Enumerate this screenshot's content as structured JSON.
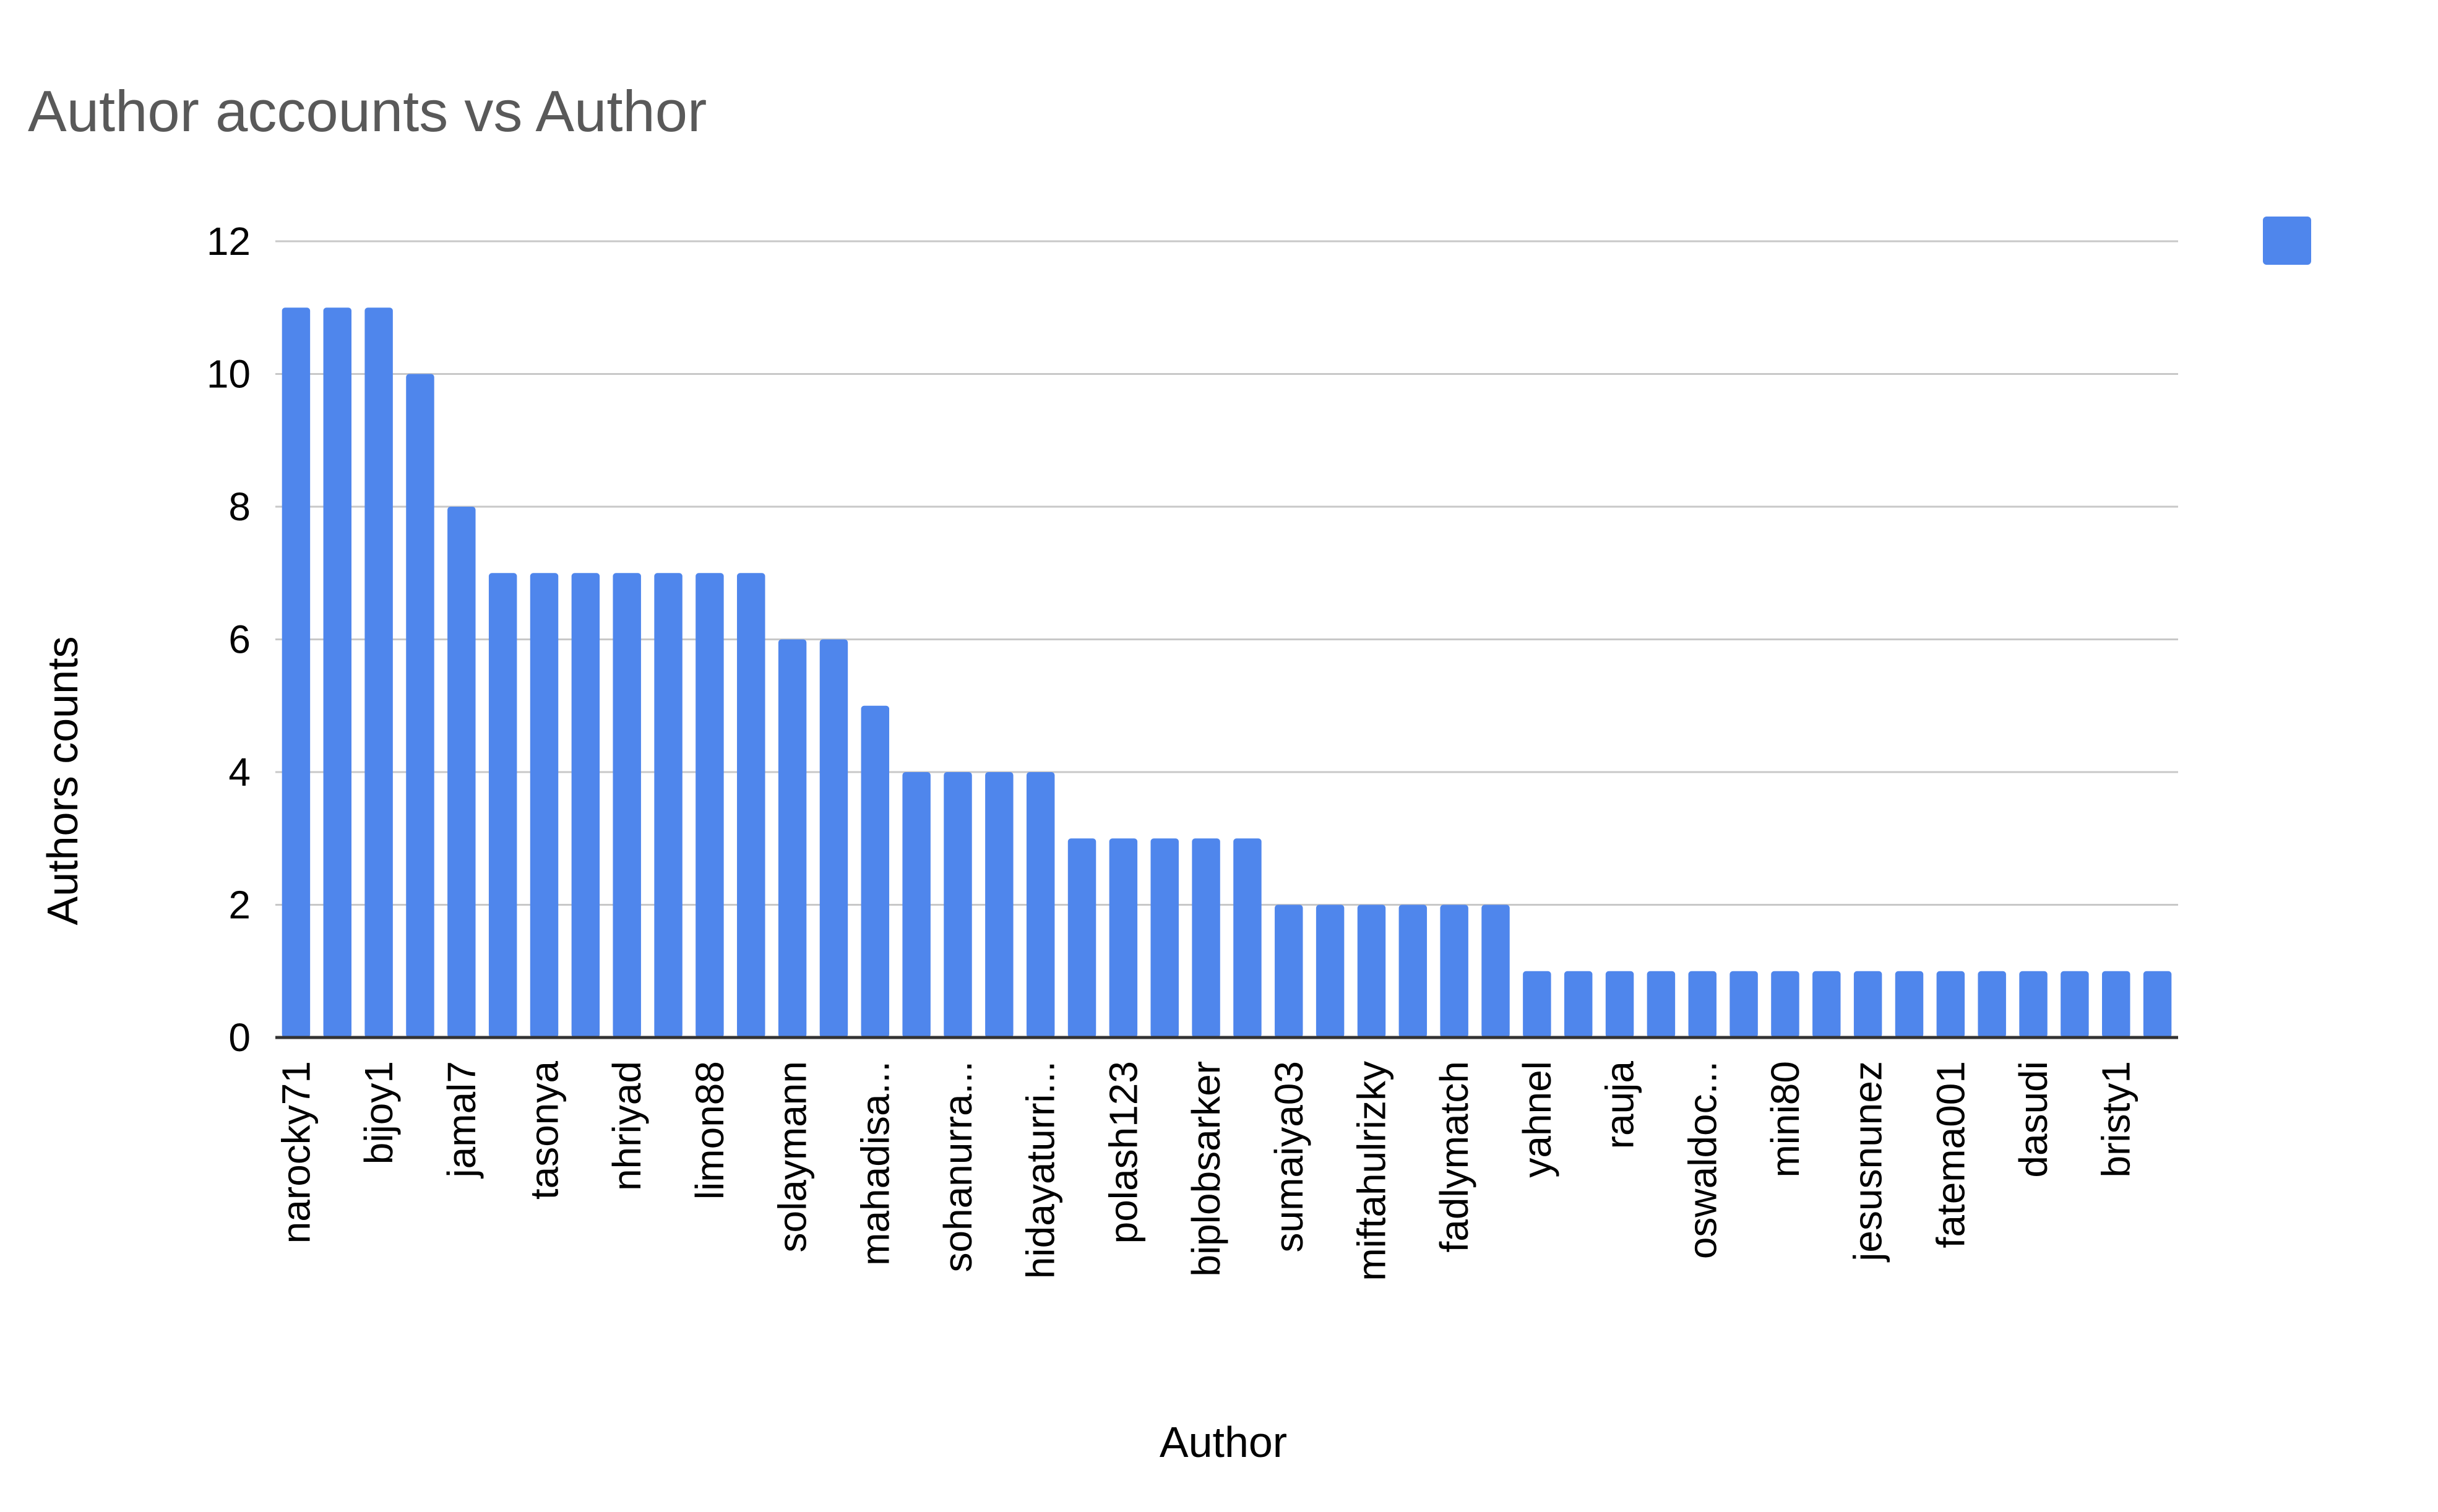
{
  "chart_data": {
    "type": "bar",
    "title": "Author accounts vs Author",
    "xlabel": "Author",
    "ylabel": "Authors counts",
    "ylim": [
      0,
      12
    ],
    "yticks": [
      0,
      2,
      4,
      6,
      8,
      10,
      12
    ],
    "grid": true,
    "legend_placement": "top-right",
    "bar_color": "#4f86ec",
    "categories": [
      "narocky71",
      "",
      "bijoy1",
      "",
      "jamal7",
      "",
      "tasonya",
      "",
      "nhriyad",
      "",
      "limon88",
      "",
      "solaymann",
      "",
      "mahadisa...",
      "",
      "sohanurra...",
      "",
      "hidayaturri...",
      "",
      "polash123",
      "",
      "biplobsarker",
      "",
      "sumaiya03",
      "",
      "miftahulrizky",
      "",
      "fadlymatch",
      "",
      "yahnel",
      "",
      "rauja",
      "",
      "oswaldoc...",
      "",
      "mini80",
      "",
      "jesusnunez",
      "",
      "fatema001",
      "",
      "dasudi",
      "",
      "bristy1",
      ""
    ],
    "values": [
      11,
      11,
      11,
      10,
      8,
      7,
      7,
      7,
      7,
      7,
      7,
      7,
      6,
      6,
      5,
      4,
      4,
      4,
      4,
      3,
      3,
      3,
      3,
      3,
      2,
      2,
      2,
      2,
      2,
      2,
      1,
      1,
      1,
      1,
      1,
      1,
      1,
      1,
      1,
      1,
      1,
      1,
      1,
      1,
      1,
      1
    ]
  }
}
